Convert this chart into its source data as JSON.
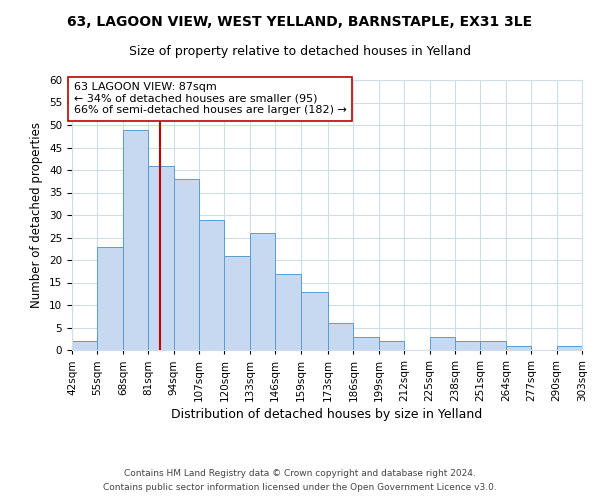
{
  "title": "63, LAGOON VIEW, WEST YELLAND, BARNSTAPLE, EX31 3LE",
  "subtitle": "Size of property relative to detached houses in Yelland",
  "xlabel": "Distribution of detached houses by size in Yelland",
  "ylabel": "Number of detached properties",
  "footer_line1": "Contains HM Land Registry data © Crown copyright and database right 2024.",
  "footer_line2": "Contains public sector information licensed under the Open Government Licence v3.0.",
  "bin_edges": [
    42,
    55,
    68,
    81,
    94,
    107,
    120,
    133,
    146,
    159,
    173,
    186,
    199,
    212,
    225,
    238,
    251,
    264,
    277,
    290,
    303
  ],
  "bin_labels": [
    "42sqm",
    "55sqm",
    "68sqm",
    "81sqm",
    "94sqm",
    "107sqm",
    "120sqm",
    "133sqm",
    "146sqm",
    "159sqm",
    "173sqm",
    "186sqm",
    "199sqm",
    "212sqm",
    "225sqm",
    "238sqm",
    "251sqm",
    "264sqm",
    "277sqm",
    "290sqm",
    "303sqm"
  ],
  "counts": [
    2,
    23,
    49,
    41,
    38,
    29,
    21,
    26,
    17,
    13,
    6,
    3,
    2,
    0,
    3,
    2,
    2,
    1,
    0,
    1
  ],
  "bar_color": "#c6d9f0",
  "bar_edge_color": "#5b9bd5",
  "vline_x": 87,
  "vline_color": "#c00000",
  "annotation_title": "63 LAGOON VIEW: 87sqm",
  "annotation_line1": "← 34% of detached houses are smaller (95)",
  "annotation_line2": "66% of semi-detached houses are larger (182) →",
  "annotation_box_color": "#ffffff",
  "annotation_box_edge": "#c00000",
  "ylim": [
    0,
    60
  ],
  "yticks": [
    0,
    5,
    10,
    15,
    20,
    25,
    30,
    35,
    40,
    45,
    50,
    55,
    60
  ],
  "background_color": "#ffffff",
  "grid_color": "#d0dce8",
  "title_fontsize": 10,
  "subtitle_fontsize": 9,
  "ylabel_fontsize": 8.5,
  "xlabel_fontsize": 9,
  "tick_fontsize": 7.5,
  "annotation_fontsize": 8,
  "footer_fontsize": 6.5
}
